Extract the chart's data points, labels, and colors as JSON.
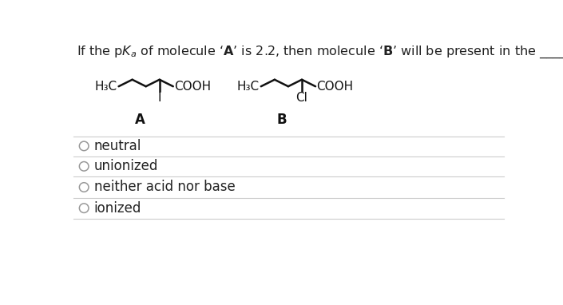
{
  "options": [
    "neutral",
    "unionized",
    "neither acid nor base",
    "ionized"
  ],
  "bg_color": "#ffffff",
  "text_color": "#222222",
  "line_color": "#cccccc",
  "circle_color": "#999999",
  "font_size_title": 11.5,
  "font_size_options": 12,
  "font_size_molecule": 11,
  "molecule_A_label": "A",
  "molecule_B_label": "B",
  "mol_color": "#111111"
}
